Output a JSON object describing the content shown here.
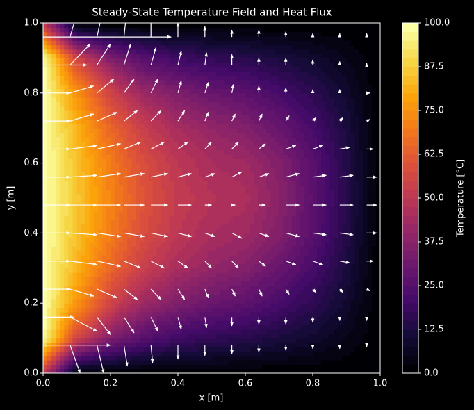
{
  "chart_data": {
    "type": "contour-quiver",
    "title": "Steady-State Temperature Field and Heat Flux",
    "x_label": "x [m]",
    "y_label": "y [m]",
    "colorbar_label": "Temperature [°C]",
    "colormap": "inferno",
    "xlim": [
      0,
      1
    ],
    "ylim": [
      0,
      1
    ],
    "xticks": [
      {
        "value": 0,
        "label": "0.0"
      },
      {
        "value": 0.2,
        "label": "0.2"
      },
      {
        "value": 0.4,
        "label": "0.4"
      },
      {
        "value": 0.6,
        "label": "0.6"
      },
      {
        "value": 0.8,
        "label": "0.8"
      },
      {
        "value": 1,
        "label": "1.0"
      }
    ],
    "yticks": [
      {
        "value": 0,
        "label": "0.0"
      },
      {
        "value": 0.2,
        "label": "0.2"
      },
      {
        "value": 0.4,
        "label": "0.4"
      },
      {
        "value": 0.6,
        "label": "0.6"
      },
      {
        "value": 0.8,
        "label": "0.8"
      },
      {
        "value": 1,
        "label": "1.0"
      }
    ],
    "clim": [
      0,
      100
    ],
    "cticks": [
      {
        "value": 0,
        "label": "0.0"
      },
      {
        "value": 12.5,
        "label": "12.5"
      },
      {
        "value": 25,
        "label": "25.0"
      },
      {
        "value": 37.5,
        "label": "37.5"
      },
      {
        "value": 50,
        "label": "50.0"
      },
      {
        "value": 62.5,
        "label": "62.5"
      },
      {
        "value": 75,
        "label": "75.0"
      },
      {
        "value": 87.5,
        "label": "87.5"
      },
      {
        "value": 100,
        "label": "100.0"
      }
    ],
    "arrow_color": "#ffffff",
    "field": {
      "x": [
        0,
        0.1,
        0.2,
        0.3,
        0.4,
        0.5,
        0.6,
        0.7,
        0.8,
        0.9,
        1
      ],
      "y": [
        0,
        0.1,
        0.2,
        0.3,
        0.4,
        0.5,
        0.6,
        0.7,
        0.8,
        0.9,
        1
      ],
      "values": [
        [
          50,
          0,
          0,
          0,
          0,
          0,
          0,
          0,
          0,
          0,
          0
        ],
        [
          100,
          55,
          35,
          25,
          20,
          17,
          15,
          12,
          9,
          5,
          0
        ],
        [
          100,
          75,
          55,
          42,
          35,
          30,
          27,
          22,
          16,
          9,
          0
        ],
        [
          100,
          82,
          65,
          53,
          45,
          40,
          36,
          30,
          22,
          12,
          0
        ],
        [
          100,
          85,
          70,
          58,
          50,
          45,
          43,
          36,
          26,
          14,
          0
        ],
        [
          100,
          86,
          72,
          60,
          52,
          48,
          46,
          38,
          27,
          15,
          0
        ],
        [
          100,
          85,
          70,
          58,
          50,
          45,
          43,
          36,
          26,
          14,
          0
        ],
        [
          100,
          82,
          65,
          53,
          45,
          40,
          36,
          30,
          22,
          12,
          0
        ],
        [
          100,
          75,
          55,
          42,
          35,
          30,
          27,
          22,
          16,
          9,
          0
        ],
        [
          100,
          55,
          35,
          25,
          20,
          17,
          15,
          12,
          9,
          5,
          0
        ],
        [
          50,
          0,
          0,
          0,
          0,
          0,
          0,
          0,
          0,
          0,
          0
        ]
      ]
    },
    "quiver": {
      "x": [
        0,
        0.08,
        0.16,
        0.24,
        0.32,
        0.4,
        0.48,
        0.56,
        0.64,
        0.72,
        0.8,
        0.88,
        0.96
      ],
      "y": [
        0.08,
        0.16,
        0.24,
        0.32,
        0.4,
        0.48,
        0.56,
        0.64,
        0.72,
        0.8,
        0.88,
        0.96
      ],
      "u": [
        [
          0.2,
          0.03,
          0.02,
          0.01,
          0.005,
          0,
          0,
          0,
          0,
          0,
          0,
          0,
          0
        ],
        [
          0.09,
          0.08,
          0.04,
          0.03,
          0.02,
          0.01,
          0.005,
          0,
          0,
          0,
          0,
          0,
          0
        ],
        [
          0.08,
          0.07,
          0.06,
          0.04,
          0.03,
          0.02,
          0.01,
          0.01,
          0.01,
          0.01,
          0.01,
          0.01,
          0.01
        ],
        [
          0.08,
          0.08,
          0.07,
          0.05,
          0.04,
          0.03,
          0.02,
          0.02,
          0.02,
          0.03,
          0.03,
          0.03,
          0.02
        ],
        [
          0.08,
          0.08,
          0.07,
          0.06,
          0.05,
          0.04,
          0.03,
          0.03,
          0.03,
          0.04,
          0.04,
          0.04,
          0.03
        ],
        [
          0.08,
          0.08,
          0.07,
          0.06,
          0.05,
          0.04,
          0.02,
          0.01,
          0.02,
          0.04,
          0.04,
          0.04,
          0.03
        ],
        [
          0.08,
          0.08,
          0.07,
          0.06,
          0.05,
          0.04,
          0.03,
          0.03,
          0.03,
          0.04,
          0.04,
          0.04,
          0.03
        ],
        [
          0.08,
          0.08,
          0.07,
          0.05,
          0.04,
          0.03,
          0.02,
          0.02,
          0.02,
          0.03,
          0.03,
          0.03,
          0.02
        ],
        [
          0.08,
          0.07,
          0.06,
          0.04,
          0.03,
          0.02,
          0.01,
          0.01,
          0.01,
          0.01,
          0.01,
          0.01,
          0.01
        ],
        [
          0.08,
          0.07,
          0.05,
          0.03,
          0.02,
          0.01,
          0.01,
          0.005,
          0,
          0,
          0,
          0,
          0.01
        ],
        [
          0.13,
          0.06,
          0.04,
          0.02,
          0.015,
          0.01,
          0.005,
          0,
          0,
          0,
          0,
          0,
          0
        ],
        [
          0.38,
          0.03,
          0.02,
          0.01,
          0,
          0,
          0,
          0,
          0,
          0,
          0,
          0,
          0
        ]
      ],
      "v": [
        [
          0,
          -0.08,
          -0.08,
          -0.06,
          -0.05,
          -0.04,
          -0.03,
          -0.025,
          -0.02,
          -0.015,
          -0.01,
          -0.01,
          -0.005
        ],
        [
          0,
          -0.04,
          -0.05,
          -0.045,
          -0.04,
          -0.035,
          -0.03,
          -0.025,
          -0.02,
          -0.02,
          -0.015,
          -0.01,
          -0.01
        ],
        [
          0,
          -0.02,
          -0.025,
          -0.03,
          -0.03,
          -0.03,
          -0.025,
          -0.02,
          -0.02,
          -0.015,
          -0.01,
          -0.01,
          -0.005
        ],
        [
          0,
          -0.01,
          -0.015,
          -0.02,
          -0.02,
          -0.02,
          -0.02,
          -0.02,
          -0.015,
          -0.01,
          -0.01,
          -0.005,
          0
        ],
        [
          0,
          -0.005,
          -0.01,
          -0.01,
          -0.01,
          -0.01,
          -0.01,
          -0.015,
          -0.01,
          -0.01,
          -0.005,
          -0.005,
          0
        ],
        [
          0,
          0,
          0,
          0,
          0,
          0,
          0,
          0,
          0,
          0,
          0,
          0,
          0
        ],
        [
          0,
          0.005,
          0.01,
          0.01,
          0.01,
          0.01,
          0.01,
          0.015,
          0.01,
          0.01,
          0.005,
          0.005,
          0
        ],
        [
          0,
          0.01,
          0.015,
          0.02,
          0.02,
          0.02,
          0.02,
          0.02,
          0.015,
          0.01,
          0.01,
          0.005,
          0
        ],
        [
          0,
          0.02,
          0.025,
          0.03,
          0.03,
          0.03,
          0.025,
          0.02,
          0.02,
          0.015,
          0.01,
          0.01,
          0.005
        ],
        [
          0,
          0.02,
          0.04,
          0.04,
          0.04,
          0.035,
          0.03,
          0.025,
          0.02,
          0.015,
          0.01,
          0.01,
          0
        ],
        [
          0,
          0.06,
          0.06,
          0.06,
          0.05,
          0.04,
          0.035,
          0.03,
          0.02,
          0.02,
          0.015,
          0.01,
          0.005
        ],
        [
          0,
          0.1,
          0.09,
          0.09,
          0.06,
          0.04,
          0.03,
          0.02,
          0.02,
          0.015,
          0.01,
          0.01,
          0.01
        ]
      ]
    }
  }
}
